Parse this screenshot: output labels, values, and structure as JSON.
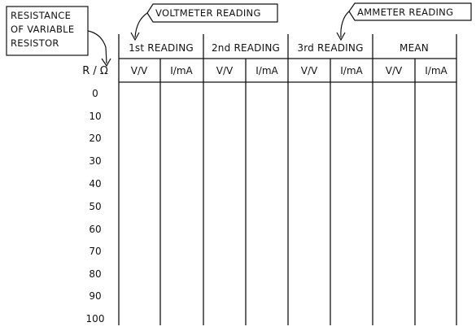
{
  "callouts": {
    "resistance": [
      "RESISTANCE",
      "OF VARIABLE",
      "RESISTOR"
    ],
    "voltmeter": "VOLTMETER READING",
    "ammeter": "AMMETER READING"
  },
  "table": {
    "row_header": "R / Ω",
    "groups": [
      "1st READING",
      "2nd READING",
      "3rd READING",
      "MEAN"
    ],
    "sub_columns": [
      "V/V",
      "I/mA"
    ],
    "resistance_values": [
      "0",
      "10",
      "20",
      "30",
      "40",
      "50",
      "60",
      "70",
      "80",
      "90",
      "100"
    ]
  }
}
